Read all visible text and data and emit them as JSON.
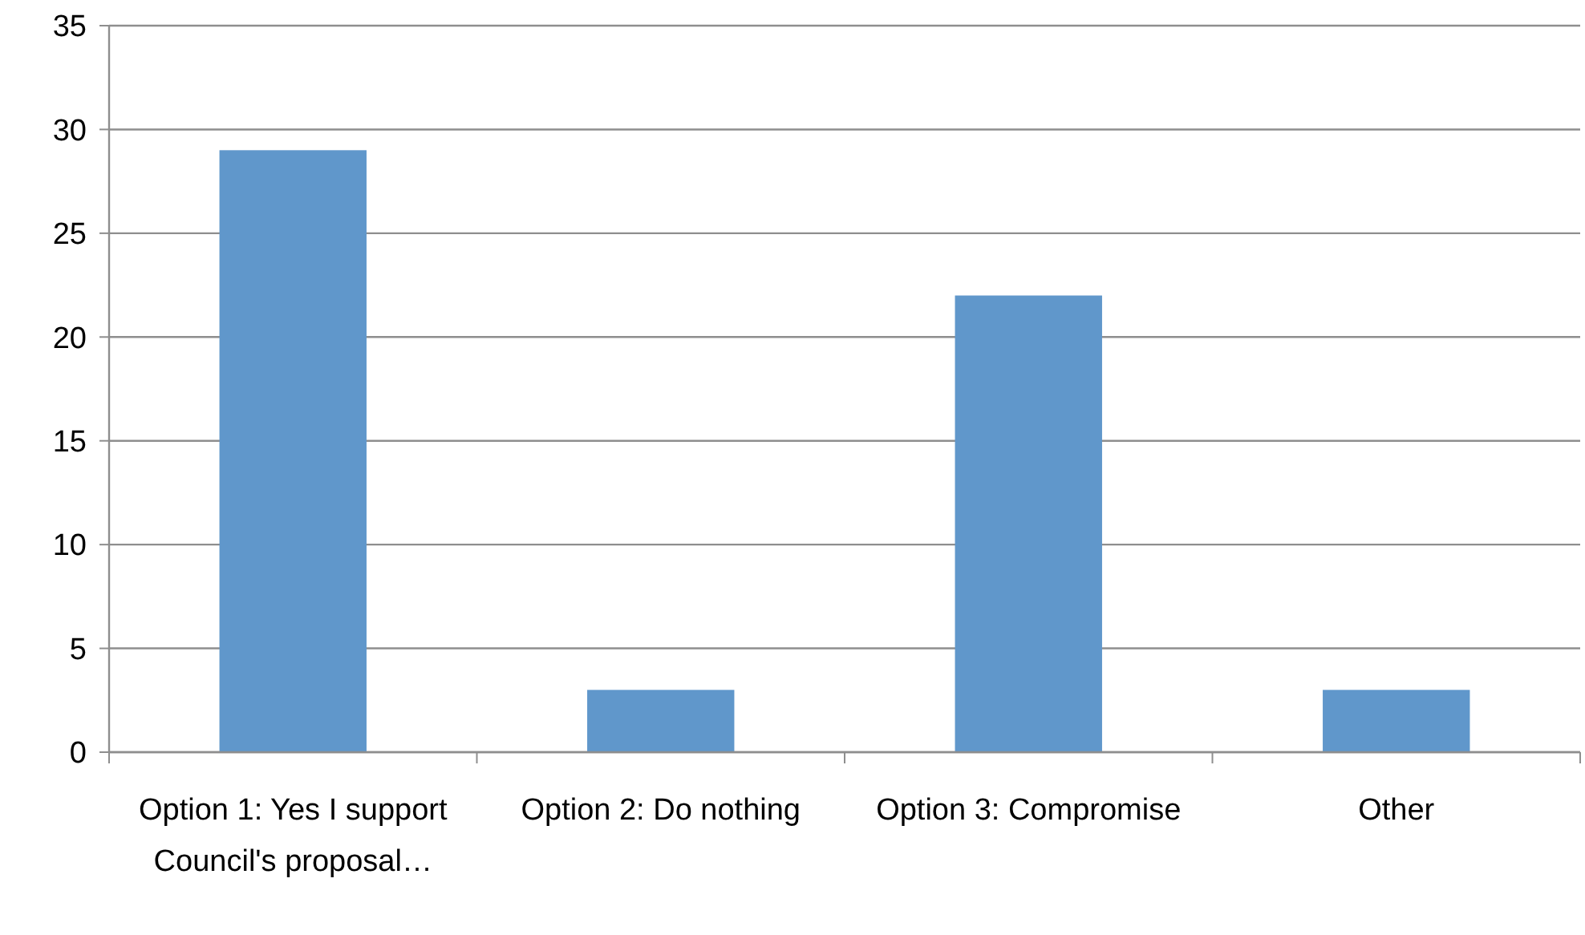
{
  "chart_data": {
    "type": "bar",
    "categories": [
      "Option 1: Yes I support Council's proposal…",
      "Option 2: Do nothing",
      "Option 3: Compromise",
      "Other"
    ],
    "values": [
      29,
      3,
      22,
      3
    ],
    "color": "#6097cb",
    "ylim": [
      0,
      35
    ],
    "yticks": [
      0,
      5,
      10,
      15,
      20,
      25,
      30,
      35
    ],
    "grid": "y"
  }
}
